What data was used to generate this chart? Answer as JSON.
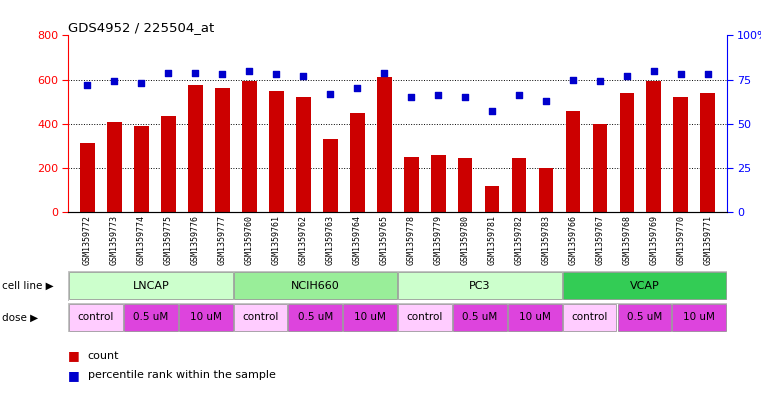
{
  "title": "GDS4952 / 225504_at",
  "samples": [
    "GSM1359772",
    "GSM1359773",
    "GSM1359774",
    "GSM1359775",
    "GSM1359776",
    "GSM1359777",
    "GSM1359760",
    "GSM1359761",
    "GSM1359762",
    "GSM1359763",
    "GSM1359764",
    "GSM1359765",
    "GSM1359778",
    "GSM1359779",
    "GSM1359780",
    "GSM1359781",
    "GSM1359782",
    "GSM1359783",
    "GSM1359766",
    "GSM1359767",
    "GSM1359768",
    "GSM1359769",
    "GSM1359770",
    "GSM1359771"
  ],
  "counts": [
    315,
    410,
    390,
    435,
    575,
    560,
    595,
    550,
    520,
    330,
    450,
    610,
    250,
    260,
    245,
    120,
    245,
    200,
    460,
    400,
    540,
    595,
    520,
    540
  ],
  "percentiles": [
    72,
    74,
    73,
    79,
    79,
    78,
    80,
    78,
    77,
    67,
    70,
    79,
    65,
    66,
    65,
    57,
    66,
    63,
    75,
    74,
    77,
    80,
    78,
    78
  ],
  "bar_color": "#cc0000",
  "dot_color": "#0000cc",
  "ylim_left": [
    0,
    800
  ],
  "ylim_right": [
    0,
    100
  ],
  "yticks_left": [
    0,
    200,
    400,
    600,
    800
  ],
  "yticks_right": [
    0,
    25,
    50,
    75,
    100
  ],
  "cell_groups": [
    {
      "label": "LNCAP",
      "start": 0,
      "end": 6,
      "color": "#ccffcc"
    },
    {
      "label": "NCIH660",
      "start": 6,
      "end": 12,
      "color": "#99ee99"
    },
    {
      "label": "PC3",
      "start": 12,
      "end": 18,
      "color": "#ccffcc"
    },
    {
      "label": "VCAP",
      "start": 18,
      "end": 24,
      "color": "#33cc55"
    }
  ],
  "dose_groups": [
    {
      "label": "control",
      "start": 0,
      "end": 2,
      "color": "#ffccff"
    },
    {
      "label": "0.5 uM",
      "start": 2,
      "end": 4,
      "color": "#dd44dd"
    },
    {
      "label": "10 uM",
      "start": 4,
      "end": 6,
      "color": "#dd44dd"
    },
    {
      "label": "control",
      "start": 6,
      "end": 8,
      "color": "#ffccff"
    },
    {
      "label": "0.5 uM",
      "start": 8,
      "end": 10,
      "color": "#dd44dd"
    },
    {
      "label": "10 uM",
      "start": 10,
      "end": 12,
      "color": "#dd44dd"
    },
    {
      "label": "control",
      "start": 12,
      "end": 14,
      "color": "#ffccff"
    },
    {
      "label": "0.5 uM",
      "start": 14,
      "end": 16,
      "color": "#dd44dd"
    },
    {
      "label": "10 uM",
      "start": 16,
      "end": 18,
      "color": "#dd44dd"
    },
    {
      "label": "control",
      "start": 18,
      "end": 20,
      "color": "#ffccff"
    },
    {
      "label": "0.5 uM",
      "start": 20,
      "end": 22,
      "color": "#dd44dd"
    },
    {
      "label": "10 uM",
      "start": 22,
      "end": 24,
      "color": "#dd44dd"
    }
  ],
  "legend_count_color": "#cc0000",
  "legend_dot_color": "#0000cc",
  "bg_color": "#ffffff",
  "xticklabel_bg": "#d8d8d8"
}
